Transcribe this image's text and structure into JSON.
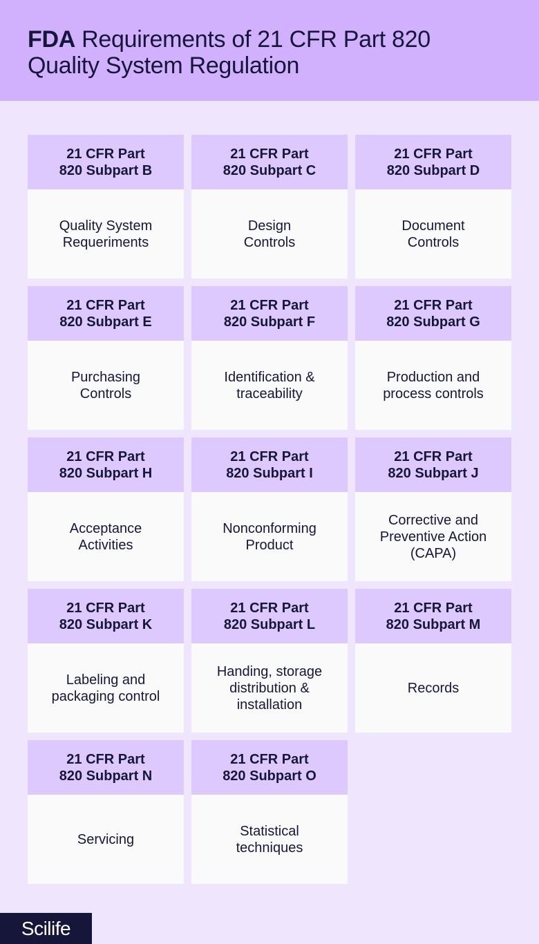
{
  "header": {
    "title_strong": "FDA",
    "title_rest_line1": " Requirements of 21 CFR Part 820",
    "title_line2": "Quality System Regulation"
  },
  "cards": [
    {
      "heading": "21 CFR Part\n820 Subpart B",
      "body": "Quality System\nRequeriments"
    },
    {
      "heading": "21 CFR Part\n820 Subpart C",
      "body": "Design\nControls"
    },
    {
      "heading": "21 CFR Part\n820 Subpart D",
      "body": "Document\nControls"
    },
    {
      "heading": "21 CFR Part\n820 Subpart E",
      "body": "Purchasing\nControls"
    },
    {
      "heading": "21 CFR Part\n820 Subpart F",
      "body": "Identification &\ntraceability"
    },
    {
      "heading": "21 CFR Part\n820 Subpart G",
      "body": "Production and\nprocess controls"
    },
    {
      "heading": "21 CFR Part\n820 Subpart H",
      "body": "Acceptance\nActivities"
    },
    {
      "heading": "21 CFR Part\n820 Subpart I",
      "body": "Nonconforming\nProduct"
    },
    {
      "heading": "21 CFR Part\n820 Subpart J",
      "body": "Corrective and\nPreventive Action\n(CAPA)"
    },
    {
      "heading": "21 CFR Part\n820 Subpart K",
      "body": "Labeling and\npackaging control"
    },
    {
      "heading": "21 CFR Part\n820 Subpart L",
      "body": "Handing, storage\ndistribution &\ninstallation"
    },
    {
      "heading": "21 CFR Part\n820 Subpart M",
      "body": "Records"
    },
    {
      "heading": "21 CFR Part\n820 Subpart N",
      "body": "Servicing"
    },
    {
      "heading": "21 CFR Part\n820 Subpart O",
      "body": "Statistical\ntechniques"
    }
  ],
  "footer": {
    "logo_text": "Scilife"
  }
}
